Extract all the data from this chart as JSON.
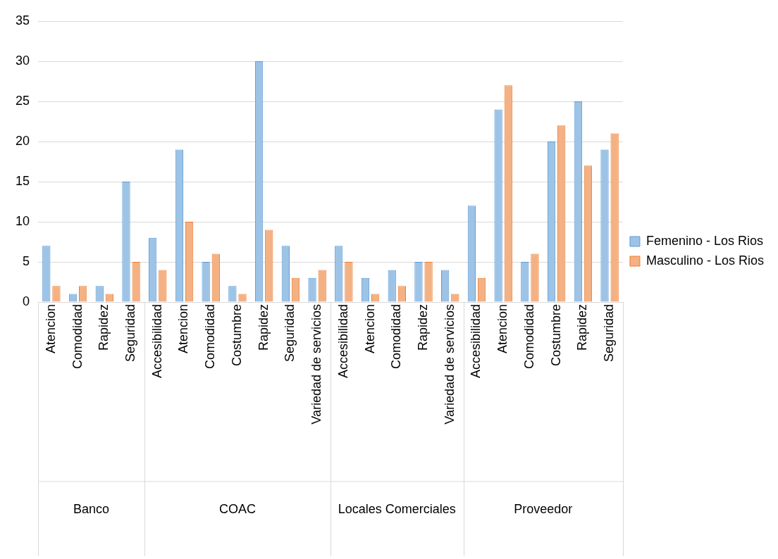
{
  "chart_data": {
    "type": "bar",
    "categories": [
      "Atencion",
      "Comodidad",
      "Rapidez",
      "Seguridad",
      "Accesibilidad",
      "Atencion",
      "Comodidad",
      "Costumbre",
      "Rapidez",
      "Seguridad",
      "Variedad de servicios",
      "Accesibilidad",
      "Atencion",
      "Comodidad",
      "Rapidez",
      "Variedad de servicios",
      "Accesibilidad",
      "Atencion",
      "Comodidad",
      "Costumbre",
      "Rapidez",
      "Seguridad"
    ],
    "series": [
      {
        "name": "Femenino - Los Rios",
        "color": "#9dc3e6",
        "values": [
          7,
          1,
          2,
          15,
          8,
          19,
          5,
          2,
          30,
          7,
          3,
          7,
          3,
          4,
          5,
          4,
          12,
          24,
          5,
          20,
          25,
          19
        ]
      },
      {
        "name": "Masculino - Los Rios",
        "color": "#f4b183",
        "values": [
          2,
          2,
          1,
          5,
          4,
          10,
          6,
          1,
          9,
          3,
          4,
          5,
          1,
          2,
          5,
          1,
          3,
          27,
          6,
          22,
          17,
          21
        ]
      }
    ],
    "ylim": [
      0,
      35
    ],
    "yticks": [
      0,
      5,
      10,
      15,
      20,
      25,
      30,
      35
    ],
    "grid": "y",
    "legend": "right",
    "annotations": [
      "Banco",
      "COAC",
      "Locales Comerciales",
      "Proveedor"
    ]
  }
}
